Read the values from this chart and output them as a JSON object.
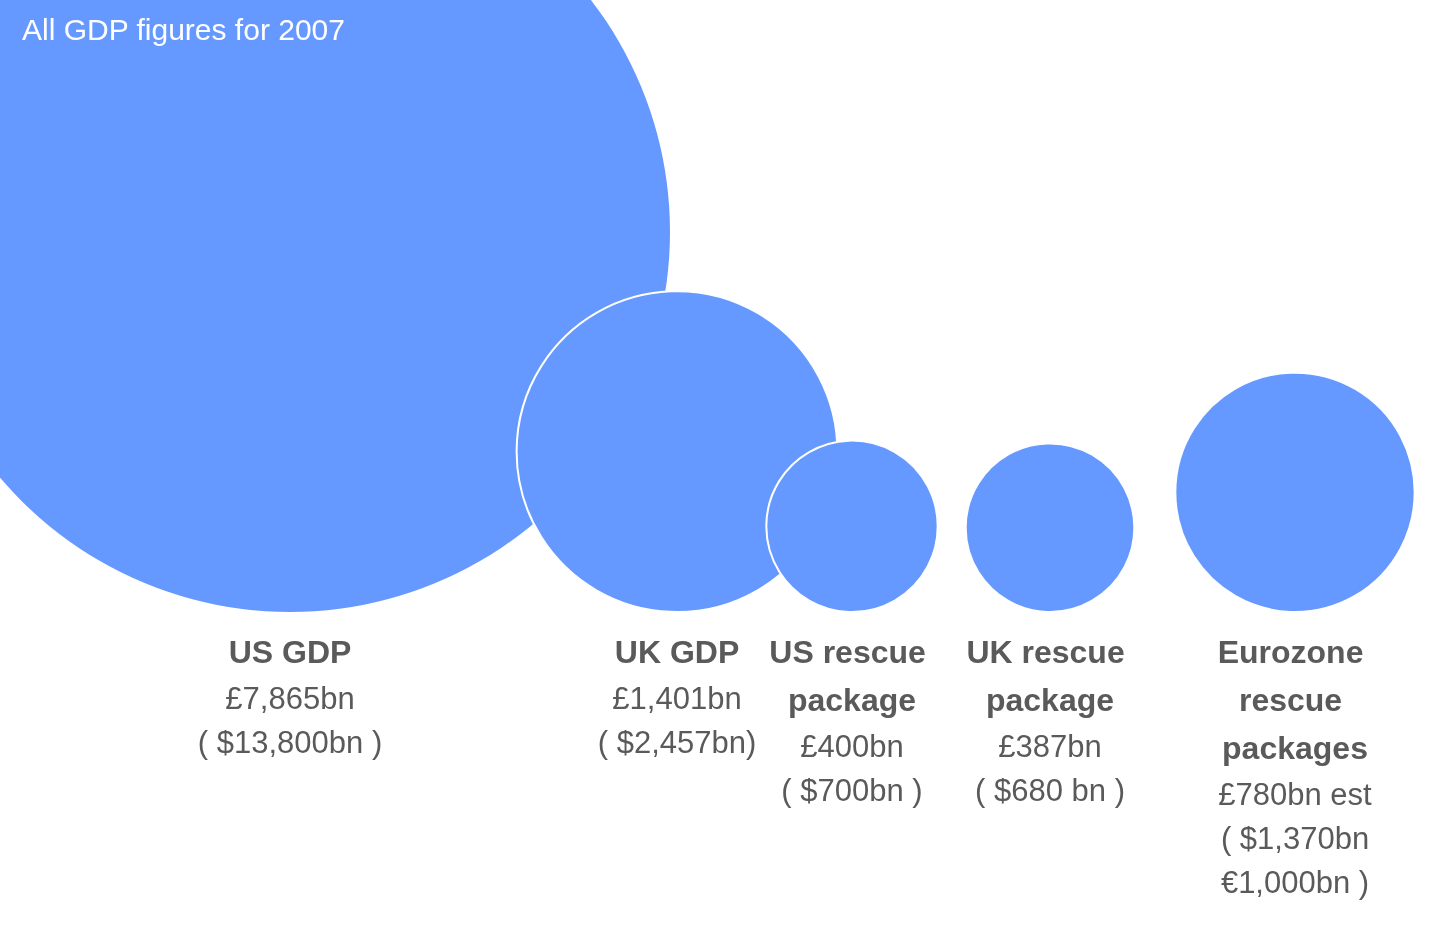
{
  "chart_data": {
    "type": "other",
    "title": "All GDP figures for 2007",
    "categories": [
      "US GDP",
      "UK GDP",
      "US rescue package",
      "UK rescue package",
      "Eurozone rescue packages"
    ],
    "values": [
      7865,
      1401,
      400,
      387,
      780
    ],
    "value_labels": [
      "£7,865bn",
      "£1,401bn",
      "£400bn",
      "£387bn",
      "£780bn est"
    ],
    "annotations": [
      "( $13,800bn )",
      "( $2,457bn)",
      "( $700bn )",
      "( $680 bn )",
      "( $1,370bn\n€1,000bn )"
    ],
    "color": "#6699ff"
  }
}
